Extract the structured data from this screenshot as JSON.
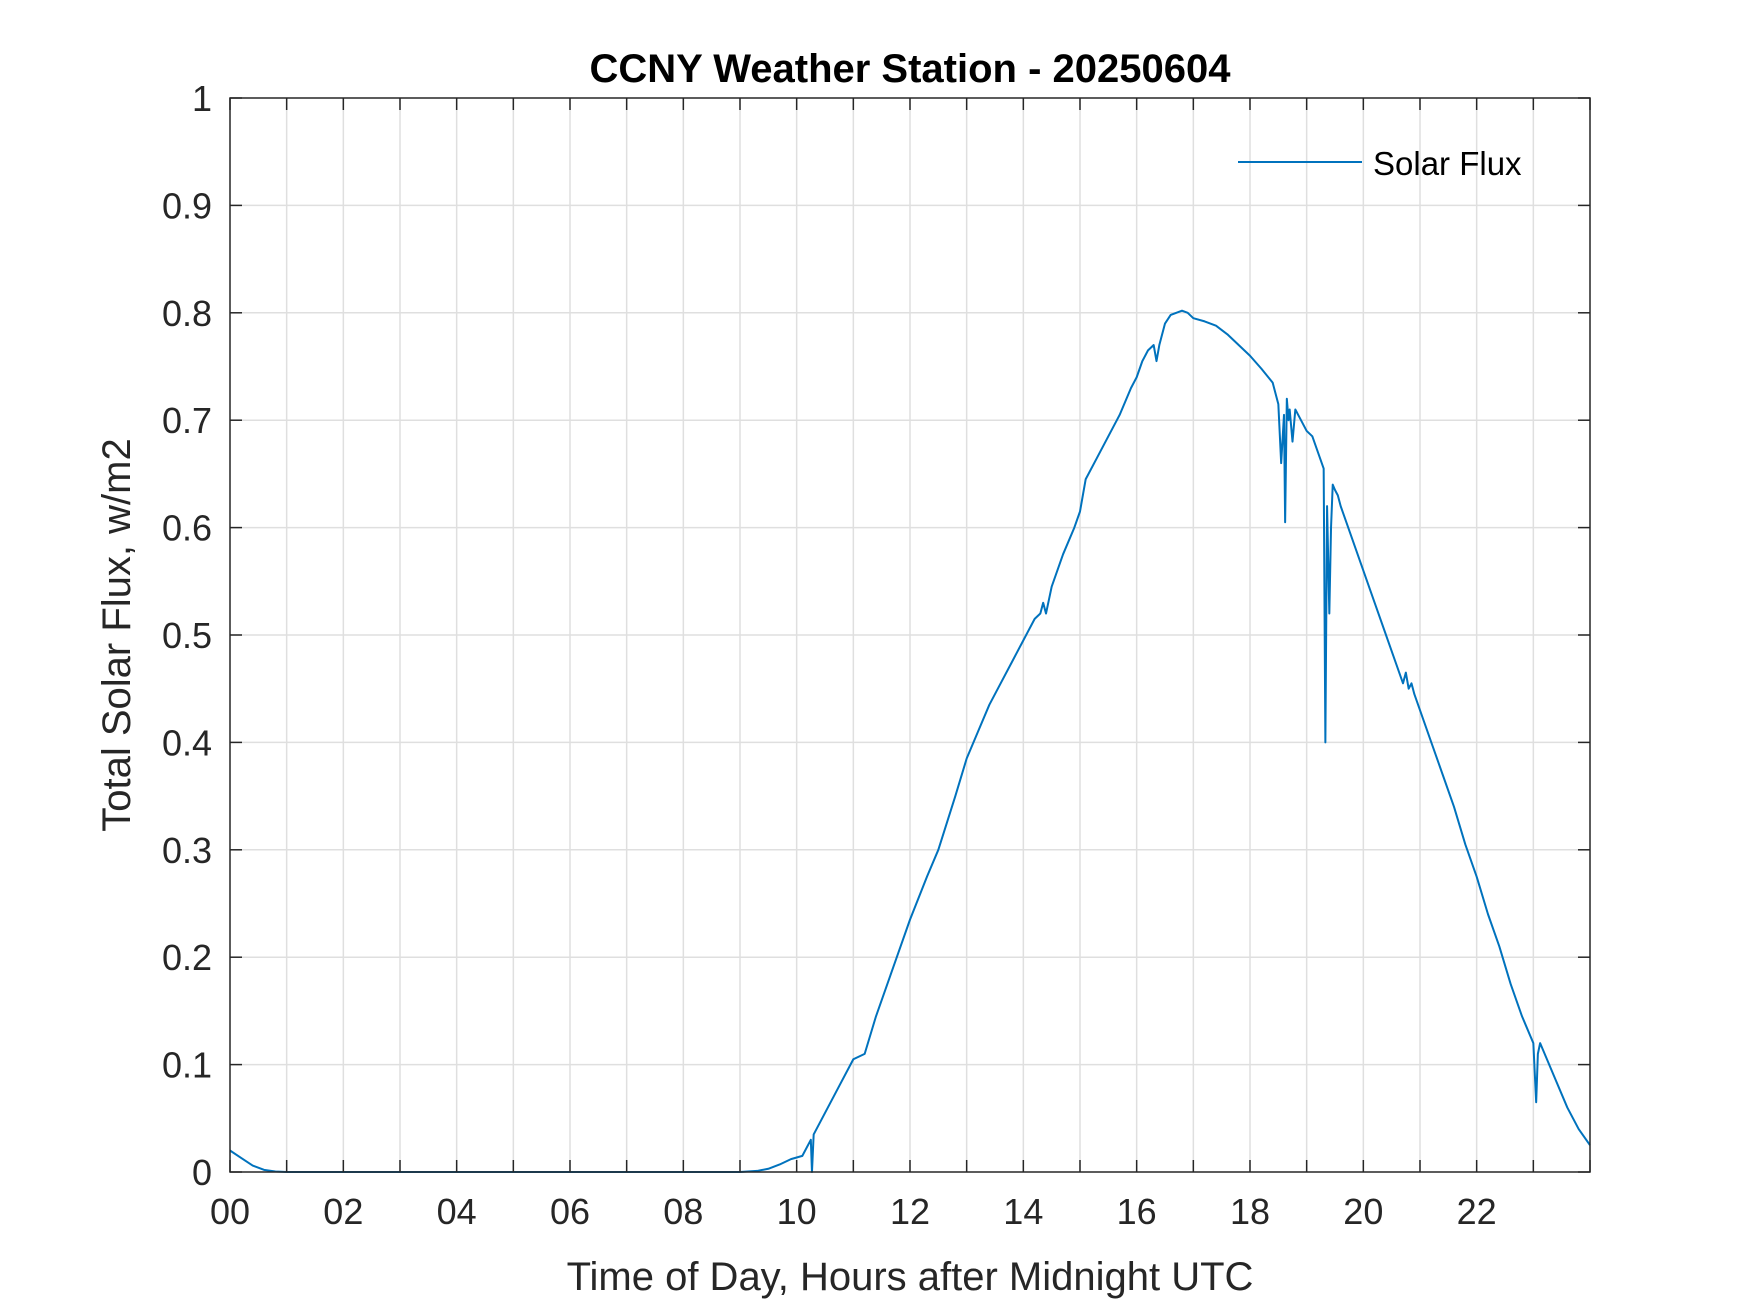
{
  "colors": {
    "series": "#0072bd",
    "axis": "#262626",
    "grid": "#dfdfdf",
    "background": "#ffffff"
  },
  "chart_data": {
    "type": "line",
    "title": "CCNY Weather Station - 20250604",
    "xlabel": "Time of Day, Hours after Midnight UTC",
    "ylabel": "Total Solar Flux, w/m2",
    "xlim": [
      0,
      24
    ],
    "ylim": [
      0,
      1
    ],
    "xticks": [
      0,
      2,
      4,
      6,
      8,
      10,
      12,
      14,
      16,
      18,
      20,
      22
    ],
    "xtick_labels": [
      "00",
      "02",
      "04",
      "06",
      "08",
      "10",
      "12",
      "14",
      "16",
      "18",
      "20",
      "22"
    ],
    "yticks": [
      0,
      0.1,
      0.2,
      0.3,
      0.4,
      0.5,
      0.6,
      0.7,
      0.8,
      0.9,
      1
    ],
    "ytick_labels": [
      "0",
      "0.1",
      "0.2",
      "0.3",
      "0.4",
      "0.5",
      "0.6",
      "0.7",
      "0.8",
      "0.9",
      "1"
    ],
    "grid": true,
    "legend_position": "top-right",
    "series": [
      {
        "name": "Solar Flux",
        "color": "#0072bd",
        "x": [
          0,
          0.2,
          0.4,
          0.6,
          0.8,
          1.0,
          2.0,
          4.0,
          6.0,
          8.0,
          9.0,
          9.3,
          9.5,
          9.7,
          9.9,
          10.1,
          10.25,
          10.27,
          10.3,
          10.5,
          10.75,
          11.0,
          11.2,
          11.4,
          11.7,
          12.0,
          12.3,
          12.5,
          12.8,
          13.0,
          13.2,
          13.4,
          13.6,
          13.8,
          14.0,
          14.2,
          14.3,
          14.35,
          14.4,
          14.5,
          14.7,
          14.9,
          15.0,
          15.1,
          15.3,
          15.5,
          15.7,
          15.9,
          16.0,
          16.1,
          16.2,
          16.3,
          16.35,
          16.4,
          16.5,
          16.6,
          16.7,
          16.8,
          16.9,
          17.0,
          17.2,
          17.4,
          17.6,
          17.8,
          18.0,
          18.2,
          18.4,
          18.5,
          18.55,
          18.6,
          18.62,
          18.65,
          18.68,
          18.7,
          18.75,
          18.8,
          18.85,
          18.9,
          19.0,
          19.1,
          19.2,
          19.3,
          19.33,
          19.36,
          19.4,
          19.43,
          19.46,
          19.5,
          19.55,
          19.6,
          19.7,
          19.8,
          20.0,
          20.2,
          20.4,
          20.6,
          20.7,
          20.75,
          20.8,
          20.85,
          20.9,
          21.0,
          21.2,
          21.4,
          21.6,
          21.8,
          22.0,
          22.2,
          22.4,
          22.6,
          22.8,
          23.0,
          23.05,
          23.08,
          23.12,
          23.2,
          23.4,
          23.6,
          23.8,
          24.0
        ],
        "y": [
          0.02,
          0.013,
          0.006,
          0.002,
          0.0005,
          0,
          0,
          0,
          0,
          0,
          0,
          0.001,
          0.003,
          0.007,
          0.012,
          0.015,
          0.03,
          0.0,
          0.035,
          0.055,
          0.08,
          0.105,
          0.11,
          0.145,
          0.19,
          0.235,
          0.275,
          0.3,
          0.35,
          0.385,
          0.41,
          0.435,
          0.455,
          0.475,
          0.495,
          0.515,
          0.52,
          0.53,
          0.52,
          0.545,
          0.575,
          0.6,
          0.615,
          0.645,
          0.665,
          0.685,
          0.705,
          0.73,
          0.74,
          0.755,
          0.765,
          0.77,
          0.755,
          0.77,
          0.79,
          0.798,
          0.8,
          0.802,
          0.8,
          0.795,
          0.792,
          0.788,
          0.78,
          0.77,
          0.76,
          0.748,
          0.735,
          0.715,
          0.66,
          0.705,
          0.605,
          0.72,
          0.7,
          0.71,
          0.68,
          0.71,
          0.705,
          0.7,
          0.69,
          0.685,
          0.67,
          0.655,
          0.4,
          0.62,
          0.52,
          0.6,
          0.64,
          0.635,
          0.63,
          0.62,
          0.605,
          0.59,
          0.56,
          0.53,
          0.5,
          0.47,
          0.455,
          0.465,
          0.45,
          0.455,
          0.445,
          0.43,
          0.4,
          0.37,
          0.34,
          0.305,
          0.275,
          0.24,
          0.21,
          0.175,
          0.145,
          0.12,
          0.065,
          0.11,
          0.12,
          0.11,
          0.085,
          0.06,
          0.04,
          0.025
        ]
      }
    ]
  }
}
